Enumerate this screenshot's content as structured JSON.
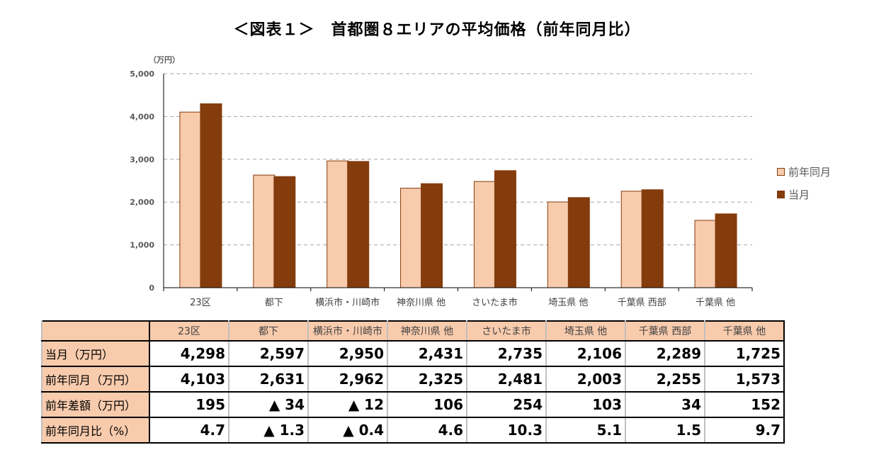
{
  "title": "＜図表１＞　首都圏８エリアの平均価格（前年同月比）",
  "chart_data": {
    "type": "bar",
    "title": "＜図表１＞　首都圏８エリアの平均価格（前年同月比）",
    "ylabel": "（万円）",
    "ylim": [
      0,
      5000
    ],
    "yticks": [
      0,
      1000,
      2000,
      3000,
      4000,
      5000
    ],
    "ytick_labels": [
      "0",
      "1,000",
      "2,000",
      "3,000",
      "4,000",
      "5,000"
    ],
    "grid": true,
    "legend": "right",
    "categories": [
      "23区",
      "都下",
      "横浜市・川崎市",
      "神奈川県 他",
      "さいたま市",
      "埼玉県 他",
      "千葉県 西部",
      "千葉県 他"
    ],
    "series": [
      {
        "name": "前年同月",
        "color": "#F8CBAD",
        "values": [
          4103,
          2631,
          2962,
          2325,
          2481,
          2003,
          2255,
          1573
        ]
      },
      {
        "name": "当月",
        "color": "#843C0C",
        "values": [
          4298,
          2597,
          2950,
          2431,
          2735,
          2106,
          2289,
          1725
        ]
      }
    ]
  },
  "table": {
    "headers": [
      "23区",
      "都下",
      "横浜市・川崎市",
      "神奈川県 他",
      "さいたま市",
      "埼玉県 他",
      "千葉県 西部",
      "千葉県 他"
    ],
    "rows": [
      {
        "label": "当月（万円）",
        "cells": [
          "4,298",
          "2,597",
          "2,950",
          "2,431",
          "2,735",
          "2,106",
          "2,289",
          "1,725"
        ]
      },
      {
        "label": "前年同月（万円）",
        "cells": [
          "4,103",
          "2,631",
          "2,962",
          "2,325",
          "2,481",
          "2,003",
          "2,255",
          "1,573"
        ]
      },
      {
        "label": "前年差額（万円）",
        "cells": [
          "195",
          "▲ 34",
          "▲ 12",
          "106",
          "254",
          "103",
          "34",
          "152"
        ]
      },
      {
        "label": "前年同月比（%）",
        "cells": [
          "4.7",
          "▲ 1.3",
          "▲ 0.4",
          "4.6",
          "10.3",
          "5.1",
          "1.5",
          "9.7"
        ]
      }
    ]
  }
}
